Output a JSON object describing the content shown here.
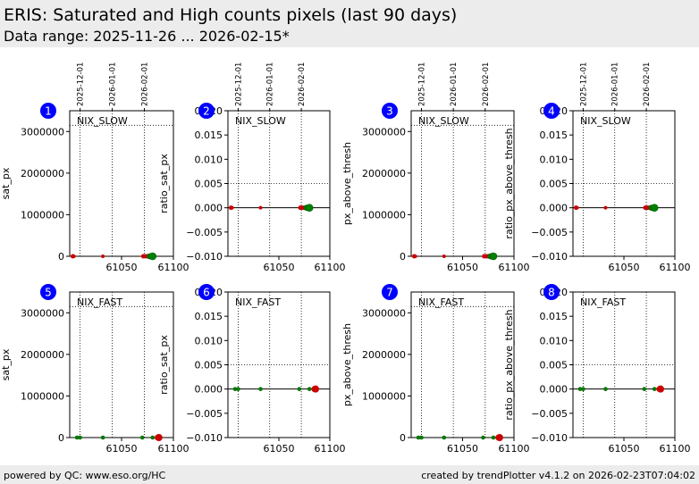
{
  "header": {
    "title": "ERIS: Saturated and High counts pixels (last 90 days)",
    "subtitle": "Data range: 2025-11-26 ... 2026-02-15*"
  },
  "footer": {
    "left": "powered by QC: www.eso.org/HC",
    "right": "created by trendPlotter v4.1.2 on 2026-02-23T07:04:02"
  },
  "colors": {
    "accent_badge": "#0000ff",
    "red": "#cc0000",
    "green": "#008000",
    "green_dark": "#006400"
  },
  "chart_data": [
    {
      "type": "scatter",
      "panel": "1",
      "label": "NIX_SLOW",
      "xlabel": "",
      "ylabel": "sat_px",
      "xlim": [
        61000,
        61100
      ],
      "ylim": [
        0,
        3500000
      ],
      "xticks": [
        61050,
        61100
      ],
      "yticks": [
        0,
        1000000,
        2000000,
        3000000
      ],
      "date_ticks": [
        {
          "x": 61010,
          "label": "2025-12-01"
        },
        {
          "x": 61041,
          "label": "2026-01-01"
        },
        {
          "x": 61072,
          "label": "2026-02-01"
        }
      ],
      "vlines": [
        61010,
        61041,
        61072
      ],
      "hline": 3150000,
      "points": [
        {
          "x": 61003,
          "y": 0,
          "c": "red",
          "r": 2.5
        },
        {
          "x": 61004,
          "y": 0,
          "c": "red",
          "r": 2
        },
        {
          "x": 61032,
          "y": 0,
          "c": "red",
          "r": 2
        },
        {
          "x": 61071,
          "y": 0,
          "c": "red",
          "r": 2.5
        },
        {
          "x": 61073,
          "y": 0,
          "c": "red",
          "r": 2.5
        },
        {
          "x": 61075,
          "y": 0,
          "c": "red",
          "r": 2.5
        },
        {
          "x": 61077,
          "y": 0,
          "c": "green",
          "r": 3
        },
        {
          "x": 61079,
          "y": 0,
          "c": "green",
          "r": 3.5
        },
        {
          "x": 61080,
          "y": 0,
          "c": "green",
          "r": 4
        }
      ]
    },
    {
      "type": "scatter",
      "panel": "2",
      "label": "NIX_SLOW",
      "xlabel": "",
      "ylabel": "ratio_sat_px",
      "xlim": [
        61000,
        61100
      ],
      "ylim": [
        -0.01,
        0.02
      ],
      "xticks": [
        61050,
        61100
      ],
      "yticks": [
        -0.01,
        -0.005,
        0.0,
        0.005,
        0.01,
        0.015,
        0.02
      ],
      "ytick_labels": [
        "−0.010",
        "−0.005",
        "0.000",
        "0.005",
        "0.010",
        "0.015",
        "0.020"
      ],
      "date_ticks": [
        {
          "x": 61010,
          "label": "2025-12-01"
        },
        {
          "x": 61041,
          "label": "2026-01-01"
        },
        {
          "x": 61072,
          "label": "2026-02-01"
        }
      ],
      "vlines": [
        61010,
        61041,
        61072
      ],
      "hline": 0.005,
      "zero_line": true,
      "points": [
        {
          "x": 61003,
          "y": 0,
          "c": "red",
          "r": 2.5
        },
        {
          "x": 61004,
          "y": 0,
          "c": "red",
          "r": 2
        },
        {
          "x": 61032,
          "y": 0,
          "c": "red",
          "r": 2
        },
        {
          "x": 61071,
          "y": 0,
          "c": "red",
          "r": 2.5
        },
        {
          "x": 61073,
          "y": 0,
          "c": "red",
          "r": 2.5
        },
        {
          "x": 61075,
          "y": 0,
          "c": "red",
          "r": 2.5
        },
        {
          "x": 61077,
          "y": 0,
          "c": "green",
          "r": 3
        },
        {
          "x": 61079,
          "y": 0,
          "c": "green",
          "r": 3.5
        },
        {
          "x": 61080,
          "y": 0,
          "c": "green",
          "r": 4
        }
      ]
    },
    {
      "type": "scatter",
      "panel": "3",
      "label": "NIX_SLOW",
      "xlabel": "",
      "ylabel": "px_above_thresh",
      "xlim": [
        61000,
        61100
      ],
      "ylim": [
        0,
        3500000
      ],
      "xticks": [
        61050,
        61100
      ],
      "yticks": [
        0,
        1000000,
        2000000,
        3000000
      ],
      "date_ticks": [
        {
          "x": 61010,
          "label": "2025-12-01"
        },
        {
          "x": 61041,
          "label": "2026-01-01"
        },
        {
          "x": 61072,
          "label": "2026-02-01"
        }
      ],
      "vlines": [
        61010,
        61041,
        61072
      ],
      "hline": 3150000,
      "points": [
        {
          "x": 61003,
          "y": 0,
          "c": "red",
          "r": 2.5
        },
        {
          "x": 61004,
          "y": 0,
          "c": "red",
          "r": 2
        },
        {
          "x": 61032,
          "y": 0,
          "c": "red",
          "r": 2
        },
        {
          "x": 61071,
          "y": 0,
          "c": "red",
          "r": 2.5
        },
        {
          "x": 61073,
          "y": 0,
          "c": "red",
          "r": 2.5
        },
        {
          "x": 61075,
          "y": 0,
          "c": "red",
          "r": 2.5
        },
        {
          "x": 61077,
          "y": 0,
          "c": "green",
          "r": 3
        },
        {
          "x": 61079,
          "y": 0,
          "c": "green",
          "r": 3.5
        },
        {
          "x": 61080,
          "y": 0,
          "c": "green",
          "r": 4
        }
      ]
    },
    {
      "type": "scatter",
      "panel": "4",
      "label": "NIX_SLOW",
      "xlabel": "",
      "ylabel": "ratio_px_above_thresh",
      "xlim": [
        61000,
        61100
      ],
      "ylim": [
        -0.01,
        0.02
      ],
      "xticks": [
        61050,
        61100
      ],
      "yticks": [
        -0.01,
        -0.005,
        0.0,
        0.005,
        0.01,
        0.015,
        0.02
      ],
      "ytick_labels": [
        "−0.010",
        "−0.005",
        "0.000",
        "0.005",
        "0.010",
        "0.015",
        "0.020"
      ],
      "date_ticks": [
        {
          "x": 61010,
          "label": "2025-12-01"
        },
        {
          "x": 61041,
          "label": "2026-01-01"
        },
        {
          "x": 61072,
          "label": "2026-02-01"
        }
      ],
      "vlines": [
        61010,
        61041,
        61072
      ],
      "hline": 0.005,
      "zero_line": true,
      "points": [
        {
          "x": 61003,
          "y": 0,
          "c": "red",
          "r": 2.5
        },
        {
          "x": 61004,
          "y": 0,
          "c": "red",
          "r": 2
        },
        {
          "x": 61032,
          "y": 0,
          "c": "red",
          "r": 2
        },
        {
          "x": 61071,
          "y": 0,
          "c": "red",
          "r": 2.5
        },
        {
          "x": 61073,
          "y": 0,
          "c": "red",
          "r": 2.5
        },
        {
          "x": 61075,
          "y": 0,
          "c": "red",
          "r": 2.5
        },
        {
          "x": 61077,
          "y": 0,
          "c": "green",
          "r": 3
        },
        {
          "x": 61079,
          "y": 0,
          "c": "green",
          "r": 3.5
        },
        {
          "x": 61080,
          "y": 0,
          "c": "green",
          "r": 4
        }
      ]
    },
    {
      "type": "scatter",
      "panel": "5",
      "label": "NIX_FAST",
      "xlabel": "",
      "ylabel": "sat_px",
      "xlim": [
        61000,
        61100
      ],
      "ylim": [
        0,
        3500000
      ],
      "xticks": [
        61050,
        61100
      ],
      "yticks": [
        0,
        1000000,
        2000000,
        3000000
      ],
      "vlines": [
        61010,
        61041,
        61072
      ],
      "hline": 3150000,
      "points": [
        {
          "x": 61007,
          "y": 0,
          "c": "green",
          "r": 2
        },
        {
          "x": 61010,
          "y": 0,
          "c": "green",
          "r": 2
        },
        {
          "x": 61032,
          "y": 0,
          "c": "green",
          "r": 2
        },
        {
          "x": 61070,
          "y": 0,
          "c": "green",
          "r": 2
        },
        {
          "x": 61080,
          "y": 0,
          "c": "green",
          "r": 2
        },
        {
          "x": 61085,
          "y": 0,
          "c": "red",
          "r": 3.5
        },
        {
          "x": 61086,
          "y": 0,
          "c": "red",
          "r": 4
        }
      ]
    },
    {
      "type": "scatter",
      "panel": "6",
      "label": "NIX_FAST",
      "xlabel": "",
      "ylabel": "ratio_sat_px",
      "xlim": [
        61000,
        61100
      ],
      "ylim": [
        -0.01,
        0.02
      ],
      "xticks": [
        61050,
        61100
      ],
      "yticks": [
        -0.01,
        -0.005,
        0.0,
        0.005,
        0.01,
        0.015,
        0.02
      ],
      "ytick_labels": [
        "−0.010",
        "−0.005",
        "0.000",
        "0.005",
        "0.010",
        "0.015",
        "0.020"
      ],
      "vlines": [
        61010,
        61041,
        61072
      ],
      "hline": 0.005,
      "zero_line": true,
      "points": [
        {
          "x": 61007,
          "y": 0,
          "c": "green",
          "r": 2
        },
        {
          "x": 61010,
          "y": 0,
          "c": "green",
          "r": 2
        },
        {
          "x": 61032,
          "y": 0,
          "c": "green",
          "r": 2
        },
        {
          "x": 61070,
          "y": 0,
          "c": "green",
          "r": 2
        },
        {
          "x": 61080,
          "y": 0,
          "c": "green",
          "r": 2
        },
        {
          "x": 61085,
          "y": 0,
          "c": "red",
          "r": 3.5
        },
        {
          "x": 61086,
          "y": 0,
          "c": "red",
          "r": 4
        }
      ]
    },
    {
      "type": "scatter",
      "panel": "7",
      "label": "NIX_FAST",
      "xlabel": "",
      "ylabel": "px_above_thresh",
      "xlim": [
        61000,
        61100
      ],
      "ylim": [
        0,
        3500000
      ],
      "xticks": [
        61050,
        61100
      ],
      "yticks": [
        0,
        1000000,
        2000000,
        3000000
      ],
      "vlines": [
        61010,
        61041,
        61072
      ],
      "hline": 3150000,
      "points": [
        {
          "x": 61007,
          "y": 0,
          "c": "green",
          "r": 2
        },
        {
          "x": 61010,
          "y": 0,
          "c": "green",
          "r": 2
        },
        {
          "x": 61032,
          "y": 0,
          "c": "green",
          "r": 2
        },
        {
          "x": 61070,
          "y": 0,
          "c": "green",
          "r": 2
        },
        {
          "x": 61080,
          "y": 0,
          "c": "green",
          "r": 2
        },
        {
          "x": 61085,
          "y": 0,
          "c": "red",
          "r": 3.5
        },
        {
          "x": 61086,
          "y": 0,
          "c": "red",
          "r": 4
        }
      ]
    },
    {
      "type": "scatter",
      "panel": "8",
      "label": "NIX_FAST",
      "xlabel": "",
      "ylabel": "ratio_px_above_thresh",
      "xlim": [
        61000,
        61100
      ],
      "ylim": [
        -0.01,
        0.02
      ],
      "xticks": [
        61050,
        61100
      ],
      "yticks": [
        -0.01,
        -0.005,
        0.0,
        0.005,
        0.01,
        0.015,
        0.02
      ],
      "ytick_labels": [
        "−0.010",
        "−0.005",
        "0.000",
        "0.005",
        "0.010",
        "0.015",
        "0.020"
      ],
      "vlines": [
        61010,
        61041,
        61072
      ],
      "hline": 0.005,
      "zero_line": true,
      "points": [
        {
          "x": 61007,
          "y": 0,
          "c": "green",
          "r": 2
        },
        {
          "x": 61010,
          "y": 0,
          "c": "green",
          "r": 2
        },
        {
          "x": 61032,
          "y": 0,
          "c": "green",
          "r": 2
        },
        {
          "x": 61070,
          "y": 0,
          "c": "green",
          "r": 2
        },
        {
          "x": 61080,
          "y": 0,
          "c": "green",
          "r": 2
        },
        {
          "x": 61085,
          "y": 0,
          "c": "red",
          "r": 3.5
        },
        {
          "x": 61086,
          "y": 0,
          "c": "red",
          "r": 4
        }
      ]
    }
  ]
}
